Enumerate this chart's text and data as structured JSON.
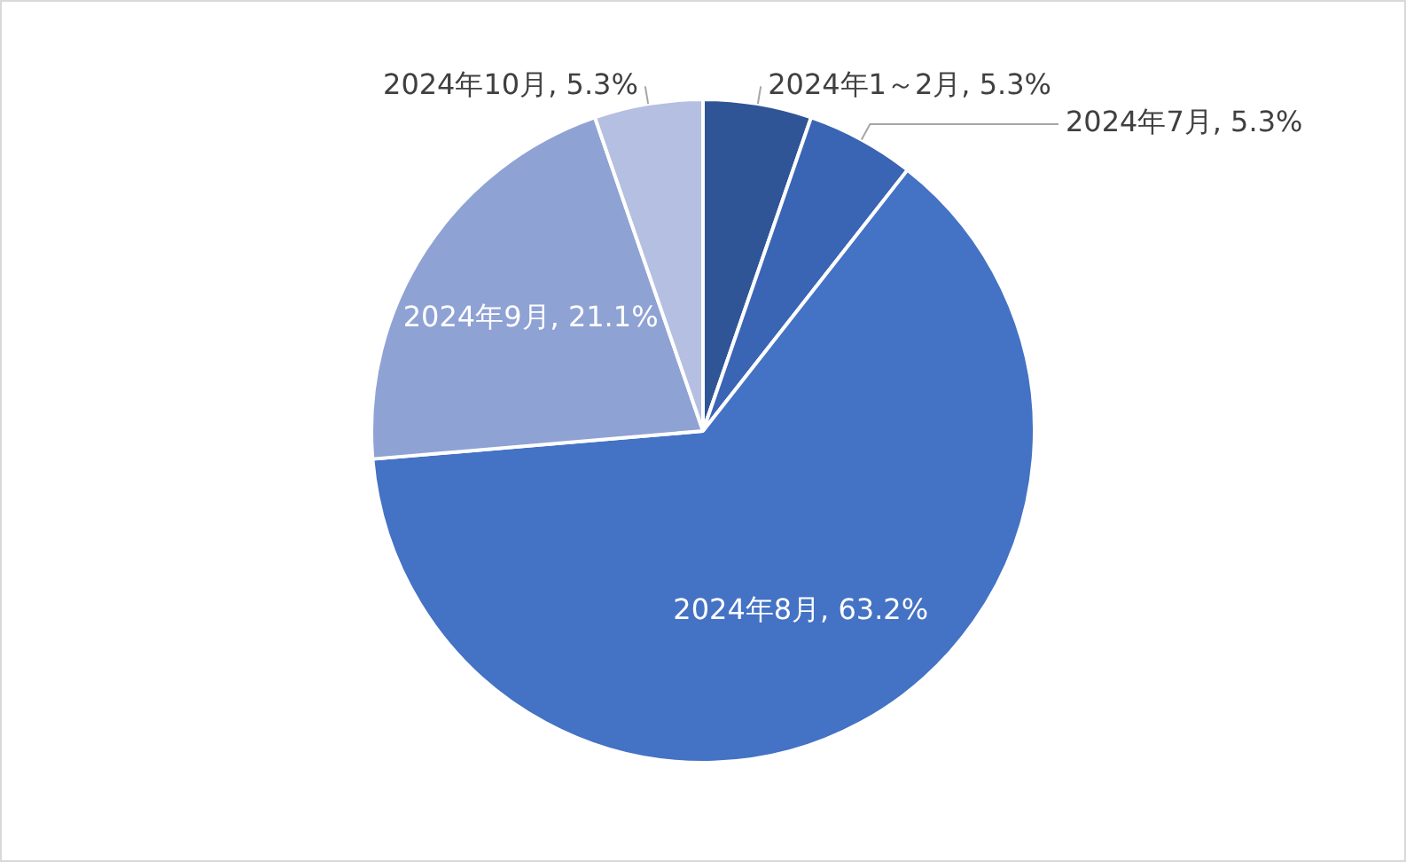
{
  "chart_data": {
    "type": "pie",
    "categories": [
      "2024年1～2月",
      "2024年7月",
      "2024年8月",
      "2024年9月",
      "2024年10月"
    ],
    "values": [
      5.3,
      5.3,
      63.2,
      21.1,
      5.3
    ],
    "value_labels": [
      "5.3%",
      "5.3%",
      "63.2%",
      "21.1%",
      "5.3%"
    ],
    "colors": [
      "#2f5597",
      "#3a64b4",
      "#4472c4",
      "#8fa2d4",
      "#b4bfe1"
    ],
    "legend": false
  }
}
